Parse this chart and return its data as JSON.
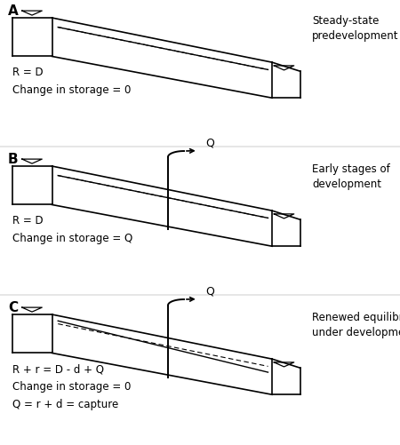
{
  "panels": [
    {
      "label": "A",
      "text_lines": [
        "R = D",
        "Change in storage = 0"
      ],
      "title": "Steady-state\npredevelopment",
      "has_well": false,
      "panel_c": false
    },
    {
      "label": "B",
      "text_lines": [
        "R = D",
        "Change in storage = Q"
      ],
      "title": "Early stages of\ndevelopment",
      "has_well": true,
      "panel_c": false
    },
    {
      "label": "C",
      "text_lines": [
        "R + r = D - d + Q",
        "Change in storage = 0",
        "Q = r + d = capture"
      ],
      "title": "Renewed equilibrium\nunder development",
      "has_well": true,
      "panel_c": true
    }
  ],
  "bg_color": "#ffffff",
  "line_color": "#000000"
}
